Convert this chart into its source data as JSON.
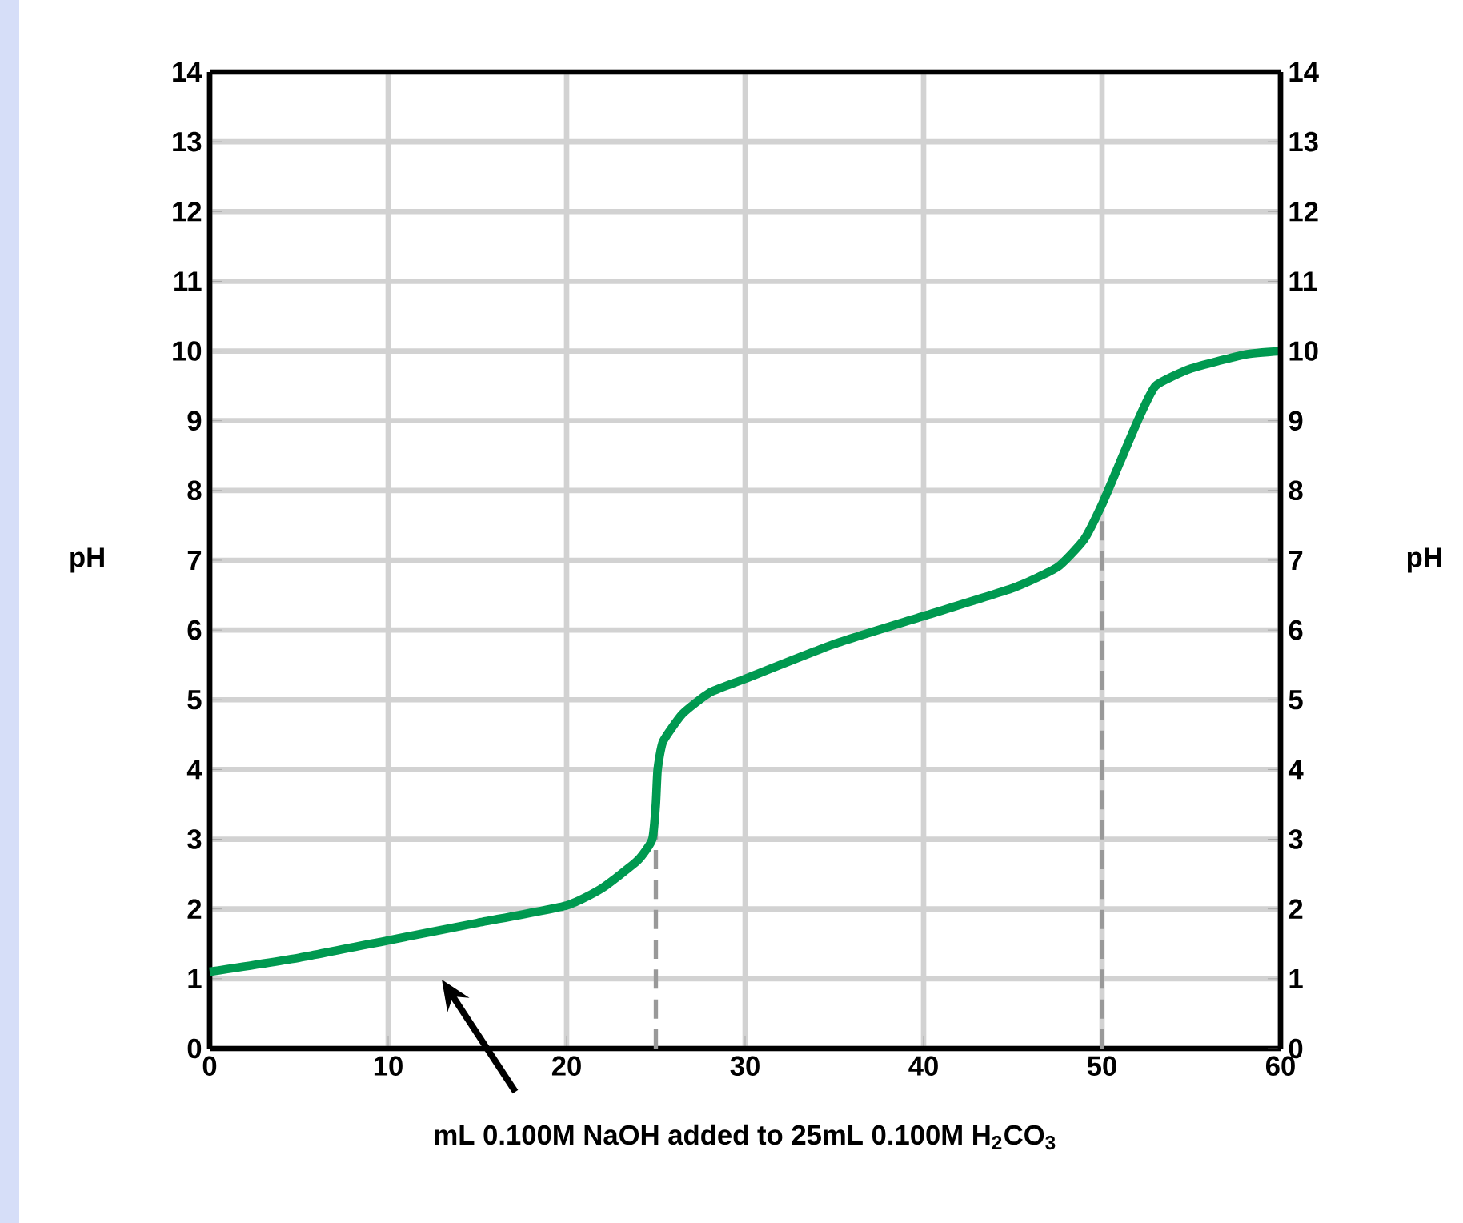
{
  "chart_data": {
    "type": "line",
    "xlabel": "mL 0.100M NaOH added to 25mL 0.100M H$_{2}$CO$_{3}$",
    "ylabel": "pH",
    "y2label": "pH",
    "series": [
      {
        "color": "#009950",
        "x": [
          0,
          5,
          10,
          15,
          20,
          22,
          24,
          24.8,
          25,
          25.1,
          25.4,
          26.5,
          28,
          30,
          35,
          40,
          45,
          47.5,
          49,
          50,
          51,
          52,
          53,
          55,
          58,
          60
        ],
        "values": [
          1.1,
          1.3,
          1.55,
          1.8,
          2.05,
          2.3,
          2.7,
          3.0,
          3.5,
          4.0,
          4.4,
          4.8,
          5.1,
          5.3,
          5.8,
          6.2,
          6.6,
          6.9,
          7.3,
          7.8,
          8.4,
          9.0,
          9.5,
          9.75,
          9.95,
          10.0
        ]
      }
    ],
    "xlim": [
      0,
      60
    ],
    "xticks": [
      0,
      10,
      20,
      30,
      40,
      50,
      60
    ],
    "ylim": [
      0,
      14
    ],
    "yticks": [
      0,
      1,
      2,
      3,
      4,
      5,
      6,
      7,
      8,
      9,
      10,
      11,
      12,
      13,
      14
    ],
    "y2lim": [
      0,
      14
    ],
    "y2ticks": [
      0,
      1,
      2,
      3,
      4,
      5,
      6,
      7,
      8,
      9,
      10,
      11,
      12,
      13,
      14
    ],
    "ref_lines": [
      {
        "axis": "x",
        "value": 25,
        "color": "#999999",
        "line_style": "dashed"
      },
      {
        "axis": "x",
        "value": 50,
        "color": "#999999",
        "line_style": "dashed"
      }
    ],
    "grid": true,
    "marker": "none",
    "line_style": "solid"
  }
}
